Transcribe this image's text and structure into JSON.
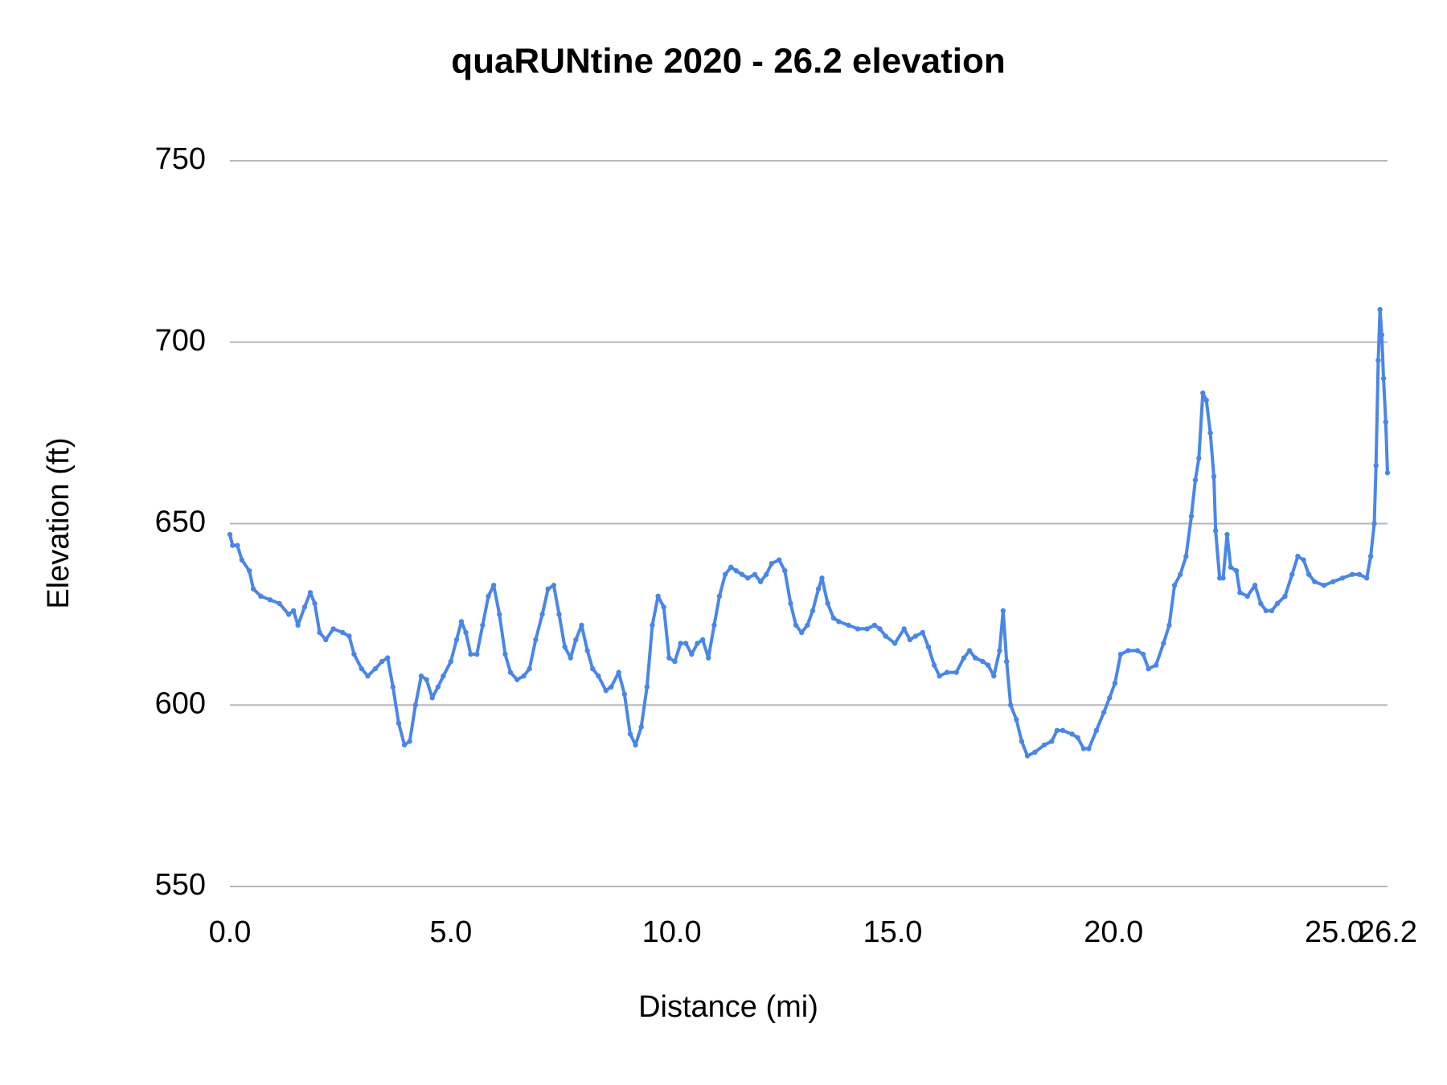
{
  "chart_data": {
    "type": "line",
    "title": "quaRUNtine 2020 - 26.2 elevation",
    "x_label": "Distance (mi)",
    "y_label": "Elevation (ft)",
    "color": "#4a86e8",
    "grid": true,
    "xlim": [
      0,
      26.2
    ],
    "ylim": [
      550,
      750
    ],
    "xticks": [
      {
        "value": 0,
        "label": "0.0"
      },
      {
        "value": 5,
        "label": "5.0"
      },
      {
        "value": 10,
        "label": "10.0"
      },
      {
        "value": 15,
        "label": "15.0"
      },
      {
        "value": 20,
        "label": "20.0"
      },
      {
        "value": 25,
        "label": "25.0"
      },
      26.2
    ],
    "yticks": [
      550,
      600,
      650,
      700,
      750
    ],
    "x": [
      0,
      0.06,
      0.17,
      0.27,
      0.44,
      0.53,
      0.7,
      0.91,
      1.12,
      1.33,
      1.44,
      1.54,
      1.69,
      1.82,
      1.92,
      2.03,
      2.17,
      2.34,
      2.55,
      2.7,
      2.81,
      2.98,
      3.12,
      3.29,
      3.44,
      3.57,
      3.69,
      3.82,
      3.95,
      4.07,
      4.2,
      4.33,
      4.45,
      4.58,
      4.71,
      4.83,
      5.0,
      5.13,
      5.24,
      5.34,
      5.45,
      5.59,
      5.72,
      5.85,
      5.97,
      6.1,
      6.23,
      6.35,
      6.5,
      6.65,
      6.78,
      6.92,
      7.07,
      7.2,
      7.33,
      7.45,
      7.58,
      7.71,
      7.83,
      7.96,
      8.09,
      8.21,
      8.34,
      8.51,
      8.63,
      8.8,
      8.93,
      9.06,
      9.18,
      9.31,
      9.44,
      9.56,
      9.69,
      9.82,
      9.94,
      10.07,
      10.2,
      10.32,
      10.45,
      10.58,
      10.7,
      10.83,
      10.96,
      11.08,
      11.21,
      11.34,
      11.46,
      11.59,
      11.72,
      11.88,
      12.01,
      12.14,
      12.26,
      12.43,
      12.56,
      12.69,
      12.81,
      12.94,
      13.07,
      13.19,
      13.32,
      13.4,
      13.53,
      13.66,
      13.78,
      14.0,
      14.21,
      14.42,
      14.59,
      14.71,
      14.84,
      15.05,
      15.26,
      15.39,
      15.52,
      15.68,
      15.81,
      15.94,
      16.06,
      16.23,
      16.44,
      16.61,
      16.74,
      16.87,
      17.04,
      17.16,
      17.29,
      17.42,
      17.5,
      17.58,
      17.67,
      17.8,
      17.92,
      18.05,
      18.22,
      18.43,
      18.6,
      18.72,
      18.85,
      19.06,
      19.19,
      19.32,
      19.44,
      19.61,
      19.78,
      19.91,
      20.03,
      20.16,
      20.33,
      20.54,
      20.67,
      20.79,
      20.96,
      21.13,
      21.26,
      21.38,
      21.51,
      21.64,
      21.76,
      21.85,
      21.93,
      22.02,
      22.1,
      22.19,
      22.27,
      22.31,
      22.4,
      22.48,
      22.57,
      22.65,
      22.78,
      22.86,
      23.03,
      23.2,
      23.33,
      23.45,
      23.58,
      23.71,
      23.88,
      24.04,
      24.17,
      24.3,
      24.42,
      24.55,
      24.76,
      24.97,
      25.18,
      25.4,
      25.56,
      25.73,
      25.82,
      25.9,
      25.94,
      25.99,
      26.03,
      26.07,
      26.11,
      26.16,
      26.2
    ],
    "values": [
      647,
      644,
      644,
      640,
      637,
      632,
      630,
      629,
      628,
      625,
      626,
      622,
      627,
      631,
      628,
      620,
      618,
      621,
      620,
      619,
      614,
      610,
      608,
      610,
      612,
      613,
      605,
      595,
      589,
      590,
      600,
      608,
      607,
      602,
      605,
      608,
      612,
      618,
      623,
      620,
      614,
      614,
      622,
      630,
      633,
      625,
      614,
      609,
      607,
      608,
      610,
      618,
      625,
      632,
      633,
      625,
      616,
      613,
      618,
      622,
      615,
      610,
      608,
      604,
      605,
      609,
      603,
      592,
      589,
      594,
      605,
      622,
      630,
      627,
      613,
      612,
      617,
      617,
      614,
      617,
      618,
      613,
      622,
      630,
      636,
      638,
      637,
      636,
      635,
      636,
      634,
      636,
      639,
      640,
      637,
      628,
      622,
      620,
      622,
      626,
      632,
      635,
      628,
      624,
      623,
      622,
      621,
      621,
      622,
      621,
      619,
      617,
      621,
      618,
      619,
      620,
      616,
      611,
      608,
      609,
      609,
      613,
      615,
      613,
      612,
      611,
      608,
      615,
      626,
      612,
      600,
      596,
      590,
      586,
      587,
      589,
      590,
      593,
      593,
      592,
      591,
      588,
      588,
      593,
      598,
      602,
      606,
      614,
      615,
      615,
      614,
      610,
      611,
      617,
      622,
      633,
      636,
      641,
      652,
      662,
      668,
      686,
      684,
      675,
      663,
      648,
      635,
      635,
      647,
      638,
      637,
      631,
      630,
      633,
      628,
      626,
      626,
      628,
      630,
      636,
      641,
      640,
      636,
      634,
      633,
      634,
      635,
      636,
      636,
      635,
      641,
      650,
      666,
      695,
      709,
      702,
      690,
      678,
      664
    ]
  }
}
